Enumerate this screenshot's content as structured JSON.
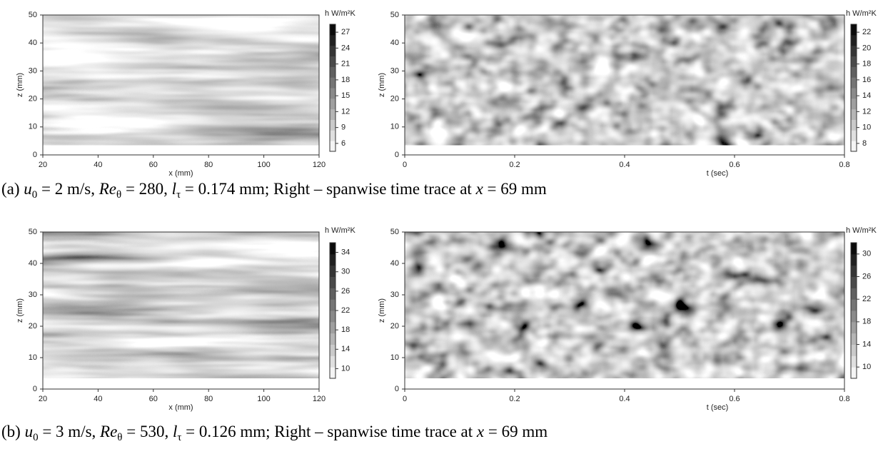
{
  "chart_data": [
    {
      "type": "heatmap",
      "xlabel": "x (mm)",
      "ylabel": "z (mm)",
      "xlim": [
        20,
        120
      ],
      "xticks": [
        20,
        40,
        60,
        80,
        100,
        120
      ],
      "ylim": [
        0,
        50
      ],
      "yticks": [
        0,
        10,
        20,
        30,
        40,
        50
      ],
      "colorbar_label": "h W/m²K",
      "clim": [
        4.5,
        28.5
      ],
      "cticks": [
        27,
        24,
        21,
        18,
        15,
        12,
        9,
        6
      ]
    },
    {
      "type": "heatmap",
      "xlabel": "t (sec)",
      "ylabel": "z (mm)",
      "xlim": [
        0,
        0.8
      ],
      "xticks": [
        0,
        0.2,
        0.4,
        0.6,
        0.8
      ],
      "ylim": [
        0,
        50
      ],
      "yticks": [
        0,
        10,
        20,
        30,
        40,
        50
      ],
      "colorbar_label": "h W/m²K",
      "clim": [
        7,
        23
      ],
      "cticks": [
        22,
        20,
        18,
        16,
        14,
        12,
        10,
        8
      ]
    },
    {
      "type": "heatmap",
      "xlabel": "x (mm)",
      "ylabel": "z (mm)",
      "xlim": [
        20,
        120
      ],
      "xticks": [
        20,
        40,
        60,
        80,
        100,
        120
      ],
      "ylim": [
        0,
        50
      ],
      "yticks": [
        0,
        10,
        20,
        30,
        40,
        50
      ],
      "colorbar_label": "h W/m²K",
      "clim": [
        8,
        36
      ],
      "cticks": [
        34,
        30,
        26,
        22,
        18,
        14,
        10
      ]
    },
    {
      "type": "heatmap",
      "xlabel": "t (sec)",
      "ylabel": "z (mm)",
      "xlim": [
        0,
        0.8
      ],
      "xticks": [
        0,
        0.2,
        0.4,
        0.6,
        0.8
      ],
      "ylim": [
        0,
        50
      ],
      "yticks": [
        0,
        10,
        20,
        30,
        40,
        50
      ],
      "colorbar_label": "h W/m²K",
      "clim": [
        8,
        32
      ],
      "cticks": [
        30,
        26,
        22,
        18,
        14,
        10
      ]
    }
  ],
  "captions": [
    [
      "(a) ",
      "u",
      "0",
      " = 2 m/s, ",
      "Re",
      "θ",
      " = 280, ",
      "l",
      "τ",
      " = 0.174 mm; Right – spanwise time trace at ",
      "x",
      " = 69 mm"
    ],
    [
      "(b) ",
      "u",
      "0",
      " = 3 m/s, ",
      "Re",
      "θ",
      " = 530, ",
      "l",
      "τ",
      " = 0.126 mm; Right – spanwise time trace at ",
      "x",
      " = 69 mm"
    ]
  ]
}
